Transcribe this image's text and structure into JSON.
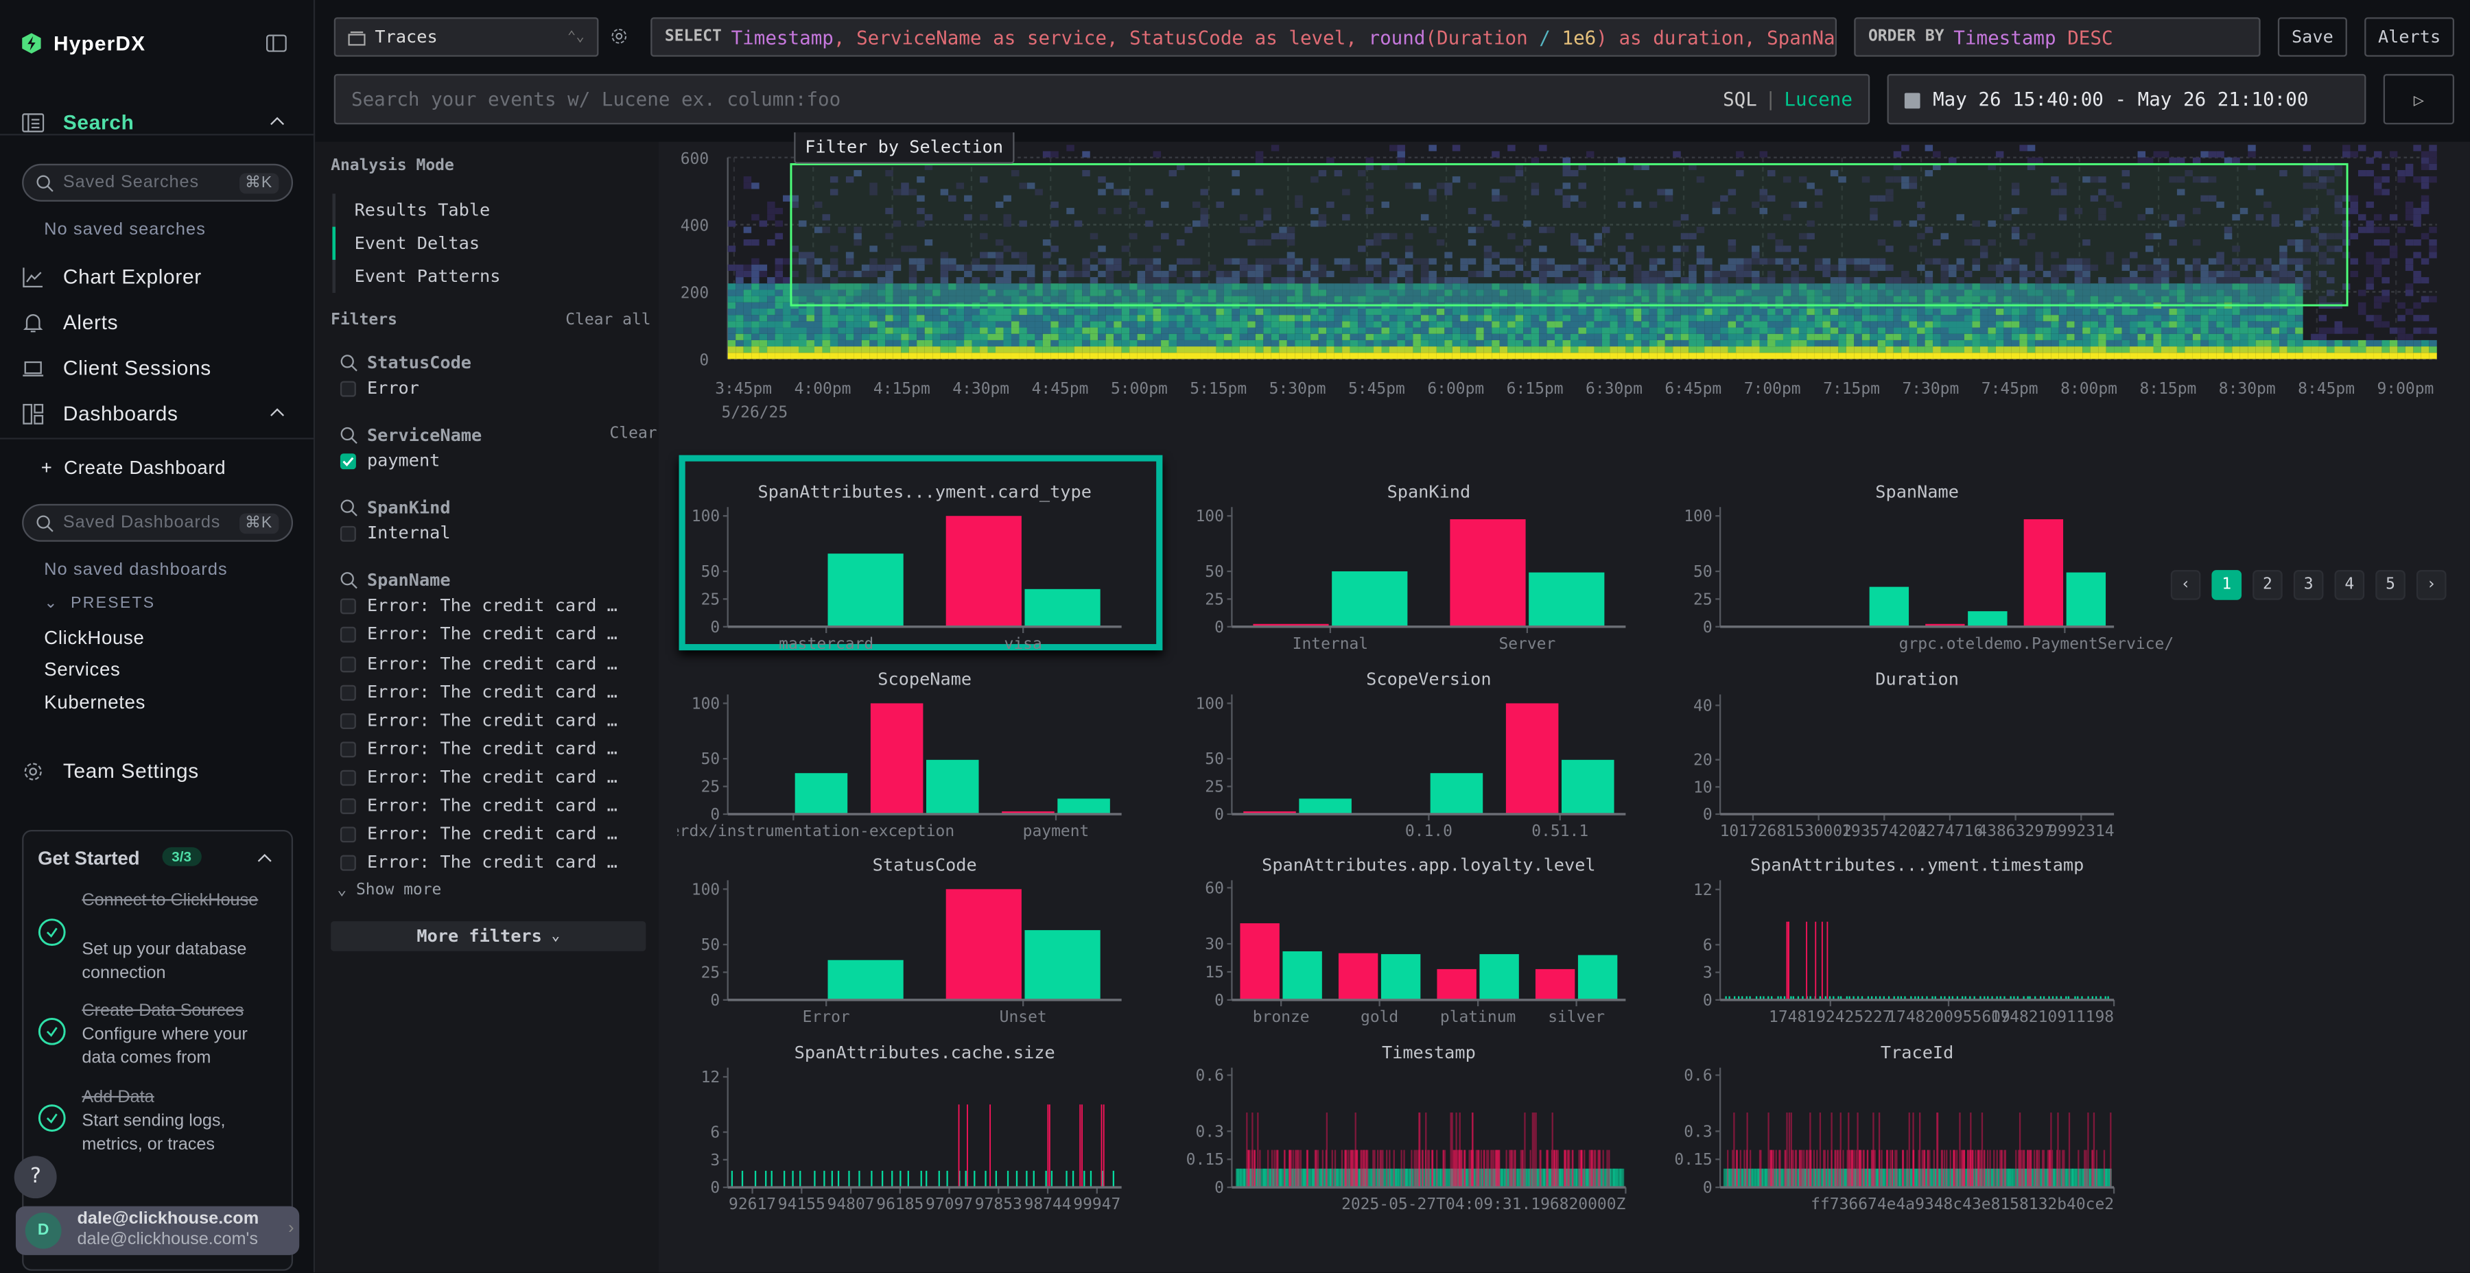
{
  "app": {
    "name": "HyperDX"
  },
  "sidebar": {
    "search_label": "Search",
    "saved_searches_placeholder": "Saved Searches",
    "shortcut": "⌘K",
    "no_saved_searches": "No saved searches",
    "items": [
      {
        "label": "Chart Explorer",
        "icon": "chart-line-icon"
      },
      {
        "label": "Alerts",
        "icon": "bell-icon"
      },
      {
        "label": "Client Sessions",
        "icon": "laptop-icon"
      },
      {
        "label": "Dashboards",
        "icon": "dashboard-icon"
      }
    ],
    "create_dashboard": "Create Dashboard",
    "saved_dashboards_placeholder": "Saved Dashboards",
    "no_saved_dashboards": "No saved dashboards",
    "presets_label": "PRESETS",
    "presets": [
      "ClickHouse",
      "Services",
      "Kubernetes"
    ],
    "team_settings": "Team Settings",
    "get_started": {
      "title": "Get Started",
      "badge": "3/3",
      "steps": [
        {
          "title": "Connect to ClickHouse",
          "desc": "Set up your database connection",
          "done": true
        },
        {
          "title": "Create Data Sources",
          "desc": "Configure where your data comes from",
          "done": true
        },
        {
          "title": "Add Data",
          "desc": "Start sending logs, metrics, or traces",
          "done": true
        }
      ]
    },
    "help": "?",
    "user": {
      "initial": "D",
      "email": "dale@clickhouse.com",
      "team": "dale@clickhouse.com's"
    }
  },
  "toolbar": {
    "source": "Traces",
    "select_keyword": "SELECT",
    "select_parts": [
      {
        "t": "Timestamp",
        "c": "#c678dd"
      },
      {
        "t": ", ServiceName as service, StatusCode as level, ",
        "c": "#e06c75"
      },
      {
        "t": "round",
        "c": "#c678dd"
      },
      {
        "t": "(Duration ",
        "c": "#e06c75"
      },
      {
        "t": "/ ",
        "c": "#56b6c2"
      },
      {
        "t": "1e6",
        "c": "#e5c07b"
      },
      {
        "t": ") as duration, SpanName",
        "c": "#e06c75"
      }
    ],
    "order_keyword": "ORDER BY",
    "order_parts": [
      {
        "t": "Timestamp ",
        "c": "#c678dd"
      },
      {
        "t": "DESC",
        "c": "#e06c75"
      }
    ],
    "save": "Save",
    "alerts": "Alerts",
    "search_placeholder": "Search your events w/ Lucene ex. column:foo",
    "sql": "SQL",
    "sep": "|",
    "lucene": "Lucene",
    "time_range": "May 26 15:40:00 - May 26 21:10:00"
  },
  "analysis": {
    "title": "Analysis Mode",
    "modes": [
      "Results Table",
      "Event Deltas",
      "Event Patterns"
    ],
    "active": "Event Deltas"
  },
  "filters": {
    "title": "Filters",
    "clear_all": "Clear all",
    "clear": "Clear",
    "groups": [
      {
        "name": "StatusCode",
        "values": [
          {
            "label": "Error",
            "checked": false
          }
        ]
      },
      {
        "name": "ServiceName",
        "values": [
          {
            "label": "payment",
            "checked": true
          }
        ]
      },
      {
        "name": "SpanKind",
        "values": [
          {
            "label": "Internal",
            "checked": false
          }
        ]
      },
      {
        "name": "SpanName",
        "values": [
          {
            "label": "Error: The credit card …",
            "checked": false
          },
          {
            "label": "Error: The credit card …",
            "checked": false
          },
          {
            "label": "Error: The credit card …",
            "checked": false
          },
          {
            "label": "Error: The credit card …",
            "checked": false
          },
          {
            "label": "Error: The credit card …",
            "checked": false
          },
          {
            "label": "Error: The credit card …",
            "checked": false
          },
          {
            "label": "Error: The credit card …",
            "checked": false
          },
          {
            "label": "Error: The credit card …",
            "checked": false
          },
          {
            "label": "Error: The credit card …",
            "checked": false
          },
          {
            "label": "Error: The credit card …",
            "checked": false
          }
        ]
      }
    ],
    "show_more": "Show more",
    "more_filters": "More filters"
  },
  "histogram": {
    "filter_button": "Filter by Selection"
  },
  "pagination": {
    "pages": [
      "1",
      "2",
      "3",
      "4",
      "5"
    ],
    "current": "1",
    "prev": "‹",
    "next": "›"
  },
  "colors": {
    "accent": "#00c48c",
    "selection": "#f9145a",
    "background": "#06d89e",
    "select_box": "#4dff7a"
  },
  "chart_data": [
    {
      "type": "heatmap",
      "ylim": [
        0,
        600
      ],
      "yticks": [
        0,
        200,
        400,
        600
      ],
      "xlim_minutes": [
        "15:44",
        "21:08"
      ],
      "xticks": [
        "3:45pm",
        "4:00pm",
        "4:15pm",
        "4:30pm",
        "4:45pm",
        "5:00pm",
        "5:15pm",
        "5:30pm",
        "5:45pm",
        "6:00pm",
        "6:15pm",
        "6:30pm",
        "6:45pm",
        "7:00pm",
        "7:15pm",
        "7:30pm",
        "7:45pm",
        "8:00pm",
        "8:15pm",
        "8:30pm",
        "8:45pm",
        "9:00pm"
      ],
      "date_label": "5/26/25",
      "selection": {
        "x": [
          "15:56",
          "20:51"
        ],
        "y": [
          160,
          580
        ]
      }
    },
    {
      "type": "bar",
      "title": "SpanAttributes...yment.card_type",
      "selected": true,
      "ylim": [
        0,
        108
      ],
      "yticks": [
        0,
        25,
        50,
        100
      ],
      "categories": [
        "mastercard",
        "visa"
      ],
      "series": [
        {
          "role": "selection",
          "values": [
            0,
            100
          ]
        },
        {
          "role": "background",
          "values": [
            66,
            34
          ]
        }
      ]
    },
    {
      "type": "bar",
      "title": "SpanKind",
      "ylim": [
        0,
        108
      ],
      "yticks": [
        0,
        25,
        50,
        100
      ],
      "categories": [
        "Internal",
        "Server"
      ],
      "series": [
        {
          "role": "selection",
          "values": [
            2.5,
            97
          ]
        },
        {
          "role": "background",
          "values": [
            50,
            49
          ]
        }
      ]
    },
    {
      "type": "bar",
      "title": "SpanName",
      "ylim": [
        0,
        108
      ],
      "yticks": [
        0,
        25,
        50,
        100
      ],
      "categories": [
        "",
        "",
        "",
        "grpc.oteldemo.PaymentService/Charge"
      ],
      "series": [
        {
          "role": "selection",
          "values": [
            0,
            0,
            2.5,
            97
          ]
        },
        {
          "role": "background",
          "values": [
            0,
            36,
            14,
            49
          ]
        }
      ]
    },
    {
      "type": "bar",
      "title": "ScopeName",
      "ylim": [
        0,
        108
      ],
      "yticks": [
        0,
        25,
        50,
        100
      ],
      "categories": [
        "@hyperdx/instrumentation-exception",
        "",
        "payment"
      ],
      "series": [
        {
          "role": "selection",
          "values": [
            0,
            100,
            2.5
          ]
        },
        {
          "role": "background",
          "values": [
            37,
            49,
            14
          ]
        }
      ]
    },
    {
      "type": "bar",
      "title": "ScopeVersion",
      "ylim": [
        0,
        108
      ],
      "yticks": [
        0,
        25,
        50,
        100
      ],
      "categories": [
        "",
        "0.1.0",
        "0.51.1"
      ],
      "series": [
        {
          "role": "selection",
          "values": [
            2.5,
            0,
            100
          ]
        },
        {
          "role": "background",
          "values": [
            14,
            37,
            49
          ]
        }
      ]
    },
    {
      "type": "spikes",
      "title": "Duration",
      "ylim": [
        0,
        44
      ],
      "yticks": [
        0,
        10,
        20,
        40
      ],
      "xticks": [
        "1017268",
        "1530002",
        "193574204",
        "2274716",
        "43863297",
        "9992314"
      ],
      "background_level": 0.3,
      "selection_level": 0.3,
      "background_count": 60,
      "selection_count": 20
    },
    {
      "type": "bar",
      "title": "StatusCode",
      "ylim": [
        0,
        108
      ],
      "yticks": [
        0,
        25,
        50,
        100
      ],
      "categories": [
        "Error",
        "Unset"
      ],
      "series": [
        {
          "role": "selection",
          "values": [
            0,
            100
          ]
        },
        {
          "role": "background",
          "values": [
            36,
            63
          ]
        }
      ]
    },
    {
      "type": "bar",
      "title": "SpanAttributes.app.loyalty.level",
      "ylim": [
        0,
        64
      ],
      "yticks": [
        0,
        15,
        30,
        60
      ],
      "categories": [
        "bronze",
        "gold",
        "platinum",
        "silver"
      ],
      "series": [
        {
          "role": "selection",
          "values": [
            41,
            25,
            16.5,
            16.5
          ]
        },
        {
          "role": "background",
          "values": [
            26,
            24.5,
            24.5,
            24
          ]
        }
      ]
    },
    {
      "type": "spikes",
      "title": "SpanAttributes...yment.timestamp",
      "ylim": [
        0,
        13
      ],
      "yticks": [
        0,
        3,
        6,
        12
      ],
      "xticks": [
        "",
        "1748192425227",
        "1748200955609",
        "1748210911198"
      ],
      "background_level": 0.4,
      "selection_level": 8.5,
      "background_count": 90,
      "selection_count": 7,
      "selection_span": [
        0.13,
        0.29
      ]
    },
    {
      "type": "spikes",
      "title": "SpanAttributes.cache.size",
      "ylim": [
        0,
        13
      ],
      "yticks": [
        0,
        3,
        6,
        12
      ],
      "xticks": [
        "92617",
        "94155",
        "94807",
        "96185",
        "97097",
        "97853",
        "98744",
        "99947"
      ],
      "background_level": 1.8,
      "selection_level": 9,
      "background_count": 40,
      "selection_count": 9,
      "selection_span": [
        0.58,
        0.98
      ]
    },
    {
      "type": "spikes",
      "title": "Timestamp",
      "ylim": [
        0,
        0.64
      ],
      "yticks": [
        0,
        0.15,
        0.3,
        0.6
      ],
      "xticks": [
        "2025-05-27T04:09:31.196820000Z"
      ],
      "background_level": 0.1,
      "selection_level": 0.2,
      "background_count": 300,
      "selection_count": 200,
      "selection_span": [
        0.03,
        0.96
      ]
    },
    {
      "type": "spikes",
      "title": "TraceId",
      "ylim": [
        0,
        0.64
      ],
      "yticks": [
        0,
        0.15,
        0.3,
        0.6
      ],
      "xticks": [
        "ff736674e4a9348c43e8158132b40ce2"
      ],
      "background_level": 0.1,
      "selection_level": 0.2,
      "background_count": 300,
      "selection_count": 200,
      "selection_span": [
        0.01,
        1
      ]
    }
  ]
}
